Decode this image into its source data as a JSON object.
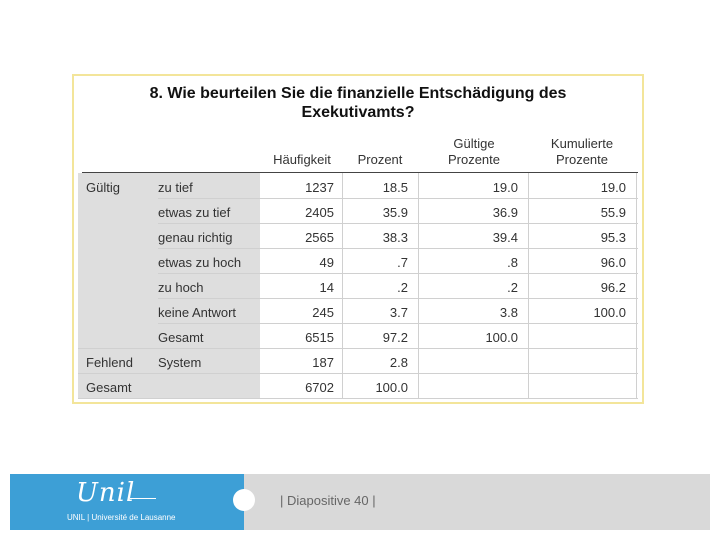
{
  "title_line1": "8. Wie beurteilen Sie die finanzielle Entschädigung des",
  "title_line2": "Exekutivamts?",
  "headers": {
    "haeufigkeit": "Häufigkeit",
    "prozent": "Prozent",
    "gueltige_1": "Gültige",
    "gueltige_2": "Prozente",
    "kumulierte_1": "Kumulierte",
    "kumulierte_2": "Prozente"
  },
  "rows": [
    {
      "group": "Gültig",
      "label": "zu tief",
      "freq": "1237",
      "pct": "18.5",
      "valid": "19.0",
      "cum": "19.0"
    },
    {
      "group": "",
      "label": "etwas zu tief",
      "freq": "2405",
      "pct": "35.9",
      "valid": "36.9",
      "cum": "55.9"
    },
    {
      "group": "",
      "label": "genau richtig",
      "freq": "2565",
      "pct": "38.3",
      "valid": "39.4",
      "cum": "95.3"
    },
    {
      "group": "",
      "label": "etwas zu hoch",
      "freq": "49",
      "pct": ".7",
      "valid": ".8",
      "cum": "96.0"
    },
    {
      "group": "",
      "label": "zu hoch",
      "freq": "14",
      "pct": ".2",
      "valid": ".2",
      "cum": "96.2"
    },
    {
      "group": "",
      "label": "keine Antwort",
      "freq": "245",
      "pct": "3.7",
      "valid": "3.8",
      "cum": "100.0"
    },
    {
      "group": "",
      "label": "Gesamt",
      "freq": "6515",
      "pct": "97.2",
      "valid": "100.0",
      "cum": ""
    },
    {
      "group": "Fehlend",
      "label": "System",
      "freq": "187",
      "pct": "2.8",
      "valid": "",
      "cum": ""
    },
    {
      "group": "Gesamt",
      "label": "",
      "freq": "6702",
      "pct": "100.0",
      "valid": "",
      "cum": ""
    }
  ],
  "footer": {
    "logo_script": "Unil",
    "logo_sub": "UNIL | Université de Lausanne",
    "slide_label": "| Diapositive 40 |"
  },
  "colors": {
    "frame_border": "#f3e59a",
    "label_bg": "#dedede",
    "footer_blue": "#3d9fd6",
    "footer_gray": "#d9d9d9"
  }
}
